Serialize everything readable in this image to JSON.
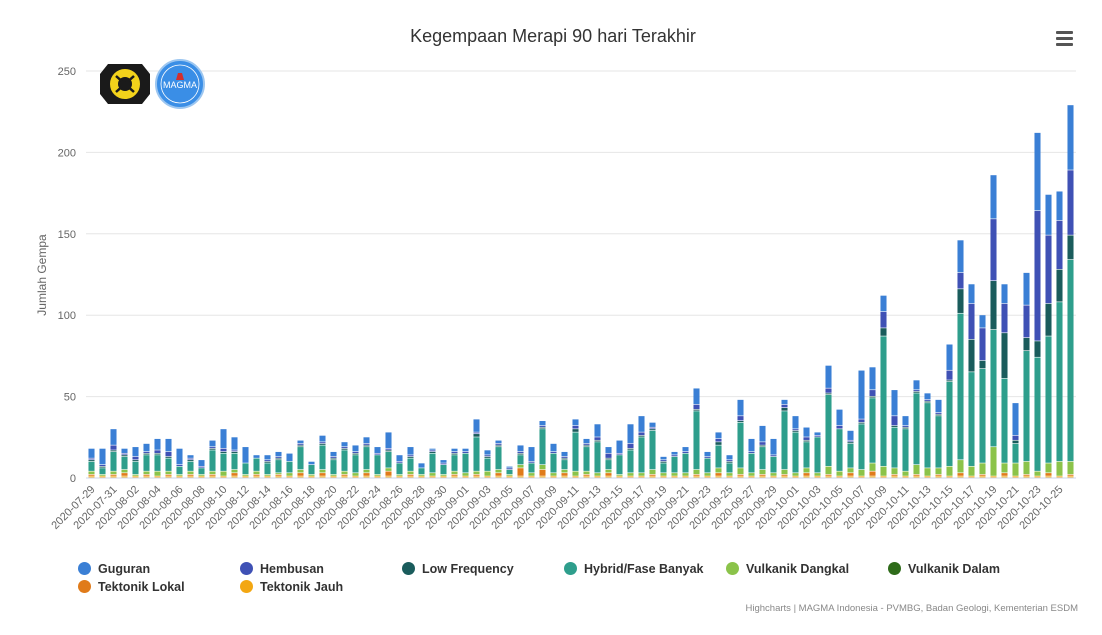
{
  "title": "Kegempaan Merapi 90 hari Terakhir",
  "credits": "Highcharts | MAGMA Indonesia - PVMBG, Badan Geologi, Kementerian ESDM",
  "logos": {
    "left": "ESDM",
    "right": "MAGMA"
  },
  "menu_icon": "hamburger-menu-icon",
  "chart_data": {
    "type": "bar",
    "stacked": true,
    "title": "Kegempaan Merapi 90 hari Terakhir",
    "ylabel": "Jumlah Gempa",
    "xlabel": "",
    "ylim": [
      0,
      250
    ],
    "yticks": [
      0,
      50,
      100,
      150,
      200,
      250
    ],
    "grid": true,
    "legend_position": "bottom",
    "categories": [
      "2020-07-29",
      "2020-07-30",
      "2020-07-31",
      "2020-08-01",
      "2020-08-02",
      "2020-08-03",
      "2020-08-04",
      "2020-08-05",
      "2020-08-06",
      "2020-08-07",
      "2020-08-08",
      "2020-08-09",
      "2020-08-10",
      "2020-08-11",
      "2020-08-12",
      "2020-08-13",
      "2020-08-14",
      "2020-08-15",
      "2020-08-16",
      "2020-08-17",
      "2020-08-18",
      "2020-08-19",
      "2020-08-20",
      "2020-08-21",
      "2020-08-22",
      "2020-08-23",
      "2020-08-24",
      "2020-08-25",
      "2020-08-26",
      "2020-08-27",
      "2020-08-28",
      "2020-08-29",
      "2020-08-30",
      "2020-08-31",
      "2020-09-01",
      "2020-09-02",
      "2020-09-03",
      "2020-09-04",
      "2020-09-05",
      "2020-09-06",
      "2020-09-07",
      "2020-09-08",
      "2020-09-09",
      "2020-09-10",
      "2020-09-11",
      "2020-09-12",
      "2020-09-13",
      "2020-09-14",
      "2020-09-15",
      "2020-09-16",
      "2020-09-17",
      "2020-09-18",
      "2020-09-19",
      "2020-09-20",
      "2020-09-21",
      "2020-09-22",
      "2020-09-23",
      "2020-09-24",
      "2020-09-25",
      "2020-09-26",
      "2020-09-27",
      "2020-09-28",
      "2020-09-29",
      "2020-09-30",
      "2020-10-01",
      "2020-10-02",
      "2020-10-03",
      "2020-10-04",
      "2020-10-05",
      "2020-10-06",
      "2020-10-07",
      "2020-10-08",
      "2020-10-09",
      "2020-10-10",
      "2020-10-11",
      "2020-10-12",
      "2020-10-13",
      "2020-10-14",
      "2020-10-15",
      "2020-10-16",
      "2020-10-17",
      "2020-10-18",
      "2020-10-19",
      "2020-10-20",
      "2020-10-21",
      "2020-10-22",
      "2020-10-23",
      "2020-10-24",
      "2020-10-25",
      "2020-10-26"
    ],
    "series": [
      {
        "name": "Tektonik Jauh",
        "color": "#f3a712",
        "values": [
          1,
          1,
          1,
          1,
          1,
          1,
          1,
          1,
          1,
          1,
          1,
          1,
          1,
          1,
          1,
          1,
          1,
          1,
          1,
          1,
          1,
          1,
          1,
          1,
          1,
          1,
          1,
          1,
          1,
          1,
          1,
          1,
          1,
          1,
          1,
          1,
          1,
          1,
          1,
          1,
          1,
          1,
          1,
          1,
          1,
          1,
          1,
          1,
          1,
          1,
          1,
          1,
          1,
          1,
          1,
          1,
          1,
          1,
          1,
          1,
          1,
          1,
          1,
          1,
          1,
          1,
          1,
          1,
          1,
          1,
          1,
          1,
          1,
          1,
          1,
          1,
          1,
          1,
          1,
          1,
          1,
          1,
          1,
          1,
          1,
          1,
          1,
          1,
          1,
          1
        ]
      },
      {
        "name": "Tektonik Lokal",
        "color": "#e07b1a",
        "values": [
          1,
          0,
          1,
          2,
          0,
          1,
          0,
          1,
          0,
          1,
          0,
          1,
          0,
          2,
          0,
          1,
          0,
          1,
          0,
          2,
          0,
          2,
          0,
          1,
          0,
          2,
          0,
          3,
          0,
          1,
          0,
          0,
          0,
          1,
          0,
          1,
          0,
          2,
          0,
          5,
          0,
          4,
          0,
          2,
          0,
          1,
          0,
          2,
          0,
          0,
          0,
          1,
          0,
          0,
          0,
          1,
          0,
          2,
          0,
          1,
          0,
          1,
          0,
          1,
          0,
          2,
          0,
          1,
          0,
          2,
          0,
          3,
          0,
          1,
          0,
          1,
          0,
          1,
          0,
          2,
          0,
          1,
          0,
          2,
          0,
          1,
          0,
          2,
          0,
          1
        ]
      },
      {
        "name": "Vulkanik Dalam",
        "color": "#2e6b1a",
        "values": [
          0,
          0,
          0,
          0,
          0,
          0,
          0,
          0,
          0,
          0,
          0,
          0,
          0,
          0,
          0,
          0,
          0,
          0,
          0,
          0,
          0,
          0,
          0,
          0,
          0,
          0,
          0,
          0,
          0,
          0,
          0,
          0,
          0,
          0,
          0,
          0,
          0,
          0,
          0,
          0,
          0,
          0,
          0,
          0,
          0,
          0,
          0,
          0,
          0,
          0,
          0,
          0,
          0,
          0,
          0,
          0,
          0,
          0,
          0,
          0,
          0,
          0,
          0,
          0,
          0,
          0,
          0,
          0,
          0,
          0,
          0,
          0,
          0,
          0,
          0,
          0,
          0,
          0,
          0,
          0,
          0,
          0,
          0,
          0,
          0,
          0,
          0,
          0,
          0,
          0
        ]
      },
      {
        "name": "Vulkanik Dangkal",
        "color": "#8bc34a",
        "values": [
          2,
          1,
          2,
          2,
          1,
          2,
          3,
          2,
          1,
          2,
          1,
          2,
          3,
          2,
          1,
          2,
          1,
          1,
          2,
          2,
          1,
          2,
          1,
          2,
          2,
          2,
          1,
          2,
          1,
          2,
          1,
          2,
          1,
          2,
          2,
          2,
          3,
          2,
          1,
          2,
          2,
          3,
          2,
          2,
          3,
          2,
          2,
          2,
          1,
          2,
          2,
          3,
          2,
          2,
          2,
          3,
          2,
          3,
          2,
          4,
          2,
          3,
          2,
          3,
          2,
          3,
          2,
          5,
          3,
          3,
          4,
          5,
          6,
          4,
          3,
          6,
          5,
          4,
          6,
          8,
          6,
          7,
          18,
          6,
          8,
          8,
          3,
          6,
          9,
          8
        ]
      },
      {
        "name": "Hybrid/Fase Banyak",
        "color": "#2e9e8c",
        "values": [
          6,
          4,
          12,
          8,
          8,
          10,
          10,
          8,
          5,
          6,
          4,
          13,
          11,
          10,
          7,
          8,
          7,
          8,
          7,
          14,
          6,
          15,
          9,
          13,
          11,
          14,
          12,
          10,
          7,
          8,
          4,
          12,
          6,
          10,
          12,
          21,
          8,
          14,
          3,
          6,
          6,
          22,
          12,
          6,
          24,
          15,
          19,
          6,
          12,
          14,
          22,
          24,
          6,
          10,
          12,
          36,
          9,
          14,
          6,
          28,
          12,
          14,
          10,
          36,
          25,
          16,
          22,
          44,
          26,
          15,
          28,
          40,
          80,
          25,
          26,
          44,
          40,
          32,
          52,
          90,
          58,
          58,
          72,
          52,
          12,
          68,
          70,
          78,
          98,
          124
        ]
      },
      {
        "name": "Low Frequency",
        "color": "#1a5c5c",
        "values": [
          1,
          1,
          1,
          1,
          1,
          1,
          1,
          1,
          0,
          1,
          0,
          1,
          1,
          1,
          0,
          0,
          1,
          1,
          0,
          1,
          0,
          1,
          1,
          1,
          1,
          1,
          0,
          1,
          0,
          1,
          0,
          1,
          0,
          1,
          0,
          2,
          1,
          1,
          0,
          1,
          0,
          1,
          0,
          1,
          2,
          1,
          1,
          1,
          0,
          1,
          1,
          1,
          1,
          0,
          0,
          1,
          0,
          2,
          1,
          1,
          0,
          1,
          0,
          2,
          1,
          1,
          0,
          1,
          0,
          1,
          1,
          1,
          5,
          1,
          1,
          1,
          1,
          1,
          1,
          15,
          20,
          5,
          30,
          28,
          2,
          8,
          10,
          20,
          20,
          15
        ]
      },
      {
        "name": "Hembusan",
        "color": "#3f51b5",
        "values": [
          1,
          1,
          3,
          1,
          2,
          1,
          2,
          3,
          1,
          1,
          1,
          1,
          2,
          1,
          0,
          0,
          1,
          1,
          0,
          1,
          0,
          1,
          1,
          1,
          1,
          1,
          1,
          1,
          1,
          1,
          0,
          1,
          1,
          1,
          1,
          1,
          1,
          1,
          1,
          1,
          1,
          1,
          1,
          1,
          2,
          1,
          2,
          3,
          1,
          3,
          2,
          1,
          1,
          1,
          1,
          3,
          1,
          2,
          1,
          3,
          1,
          2,
          1,
          2,
          1,
          2,
          1,
          3,
          2,
          1,
          2,
          4,
          10,
          6,
          1,
          1,
          1,
          1,
          6,
          10,
          22,
          20,
          38,
          18,
          3,
          20,
          80,
          42,
          30,
          40
        ]
      },
      {
        "name": "Guguran",
        "color": "#3a7fd5",
        "values": [
          6,
          10,
          10,
          3,
          6,
          5,
          7,
          8,
          10,
          2,
          4,
          4,
          12,
          8,
          10,
          2,
          3,
          3,
          5,
          2,
          2,
          4,
          3,
          3,
          4,
          4,
          4,
          10,
          4,
          5,
          3,
          1,
          2,
          2,
          2,
          8,
          3,
          2,
          1,
          4,
          9,
          3,
          5,
          3,
          4,
          3,
          8,
          4,
          8,
          12,
          10,
          3,
          2,
          2,
          3,
          10,
          3,
          4,
          3,
          10,
          8,
          10,
          10,
          3,
          8,
          6,
          2,
          14,
          10,
          6,
          30,
          14,
          10,
          16,
          6,
          6,
          4,
          8,
          16,
          20,
          12,
          8,
          27,
          12,
          20,
          20,
          48,
          25,
          18,
          40
        ]
      }
    ]
  }
}
